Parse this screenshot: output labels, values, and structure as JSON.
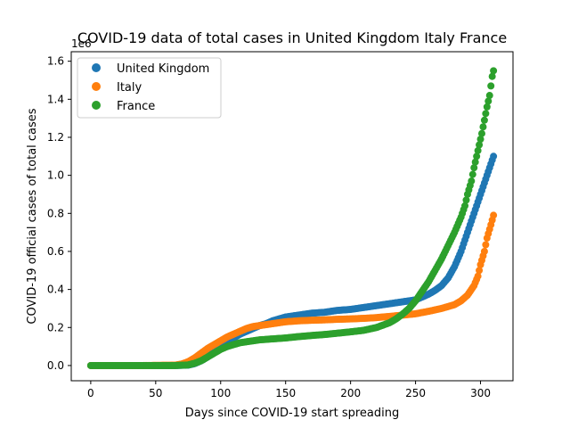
{
  "chart_data": {
    "type": "scatter",
    "title": "COVID-19 data of total cases in United Kingdom Italy France",
    "xlabel": "Days since COVID-19 start spreading",
    "ylabel": "COVID-19 official cases of total cases",
    "y_offset_text": "1e6",
    "xlim": [
      -15,
      325
    ],
    "ylim": [
      -0.08,
      1.65
    ],
    "xticks": [
      0,
      50,
      100,
      150,
      200,
      250,
      300
    ],
    "yticks": [
      0.0,
      0.2,
      0.4,
      0.6,
      0.8,
      1.0,
      1.2,
      1.4,
      1.6
    ],
    "xtick_labels": [
      "0",
      "50",
      "100",
      "150",
      "200",
      "250",
      "300"
    ],
    "ytick_labels": [
      "0.0",
      "0.2",
      "0.4",
      "0.6",
      "0.8",
      "1.0",
      "1.2",
      "1.4",
      "1.6"
    ],
    "grid": false,
    "legend_position": "upper-left",
    "series": [
      {
        "name": "United Kingdom",
        "color": "#1f77b4",
        "x": [
          0,
          40,
          65,
          75,
          80,
          85,
          90,
          95,
          100,
          105,
          110,
          115,
          120,
          125,
          130,
          135,
          140,
          145,
          150,
          160,
          170,
          180,
          190,
          200,
          210,
          220,
          230,
          240,
          250,
          255,
          260,
          265,
          270,
          275,
          280,
          285,
          290,
          295,
          300,
          305,
          310
        ],
        "y": [
          0,
          0,
          0,
          0.002,
          0.01,
          0.025,
          0.045,
          0.07,
          0.1,
          0.125,
          0.145,
          0.165,
          0.18,
          0.195,
          0.21,
          0.22,
          0.235,
          0.245,
          0.255,
          0.265,
          0.275,
          0.28,
          0.29,
          0.295,
          0.305,
          0.315,
          0.325,
          0.335,
          0.345,
          0.36,
          0.375,
          0.395,
          0.42,
          0.46,
          0.52,
          0.6,
          0.7,
          0.8,
          0.9,
          1.0,
          1.1
        ]
      },
      {
        "name": "Italy",
        "color": "#ff7f0e",
        "x": [
          0,
          40,
          65,
          70,
          75,
          80,
          85,
          90,
          95,
          100,
          105,
          110,
          115,
          120,
          125,
          130,
          140,
          150,
          160,
          170,
          180,
          190,
          200,
          210,
          220,
          230,
          240,
          250,
          260,
          270,
          280,
          285,
          290,
          295,
          298,
          300,
          303,
          305,
          308,
          310
        ],
        "y": [
          0,
          0,
          0.002,
          0.008,
          0.02,
          0.04,
          0.065,
          0.09,
          0.11,
          0.13,
          0.15,
          0.165,
          0.18,
          0.195,
          0.205,
          0.21,
          0.22,
          0.23,
          0.235,
          0.238,
          0.24,
          0.243,
          0.245,
          0.248,
          0.252,
          0.258,
          0.265,
          0.272,
          0.285,
          0.3,
          0.32,
          0.34,
          0.37,
          0.42,
          0.47,
          0.53,
          0.6,
          0.67,
          0.74,
          0.79
        ]
      },
      {
        "name": "France",
        "color": "#2ca02c",
        "x": [
          0,
          40,
          65,
          75,
          80,
          85,
          90,
          95,
          100,
          105,
          110,
          115,
          120,
          130,
          140,
          150,
          160,
          170,
          180,
          190,
          200,
          210,
          220,
          230,
          235,
          240,
          245,
          250,
          255,
          260,
          265,
          270,
          275,
          280,
          285,
          288,
          290,
          293,
          295,
          297,
          299,
          301,
          303,
          305,
          307,
          308,
          309,
          310
        ],
        "y": [
          0,
          0,
          0,
          0.003,
          0.012,
          0.025,
          0.045,
          0.065,
          0.085,
          0.1,
          0.11,
          0.12,
          0.125,
          0.135,
          0.14,
          0.145,
          0.152,
          0.158,
          0.163,
          0.17,
          0.177,
          0.185,
          0.2,
          0.225,
          0.245,
          0.27,
          0.3,
          0.34,
          0.39,
          0.44,
          0.5,
          0.56,
          0.63,
          0.7,
          0.78,
          0.84,
          0.9,
          0.97,
          1.04,
          1.1,
          1.16,
          1.22,
          1.29,
          1.36,
          1.42,
          1.47,
          1.52,
          1.55
        ]
      }
    ]
  }
}
